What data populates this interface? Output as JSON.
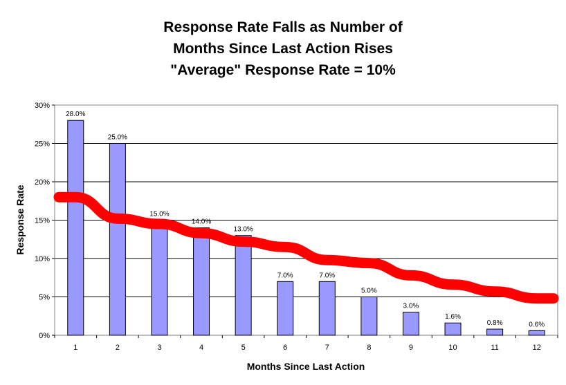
{
  "chart_data": {
    "type": "bar",
    "title_lines": [
      "Response Rate Falls as Number of",
      "Months Since Last Action Rises",
      "\"Average\" Response Rate = 10%"
    ],
    "xlabel": "Months Since Last Action",
    "ylabel": "Response Rate",
    "categories": [
      "1",
      "2",
      "3",
      "4",
      "5",
      "6",
      "7",
      "8",
      "9",
      "10",
      "11",
      "12"
    ],
    "values": [
      28.0,
      25.0,
      15.0,
      14.0,
      13.0,
      7.0,
      7.0,
      5.0,
      3.0,
      1.6,
      0.8,
      0.6
    ],
    "value_labels": [
      "28.0%",
      "25.0%",
      "15.0%",
      "14.0%",
      "13.0%",
      "7.0%",
      "7.0%",
      "5.0%",
      "3.0%",
      "1.6%",
      "0.8%",
      "0.6%"
    ],
    "ylim": [
      0,
      30
    ],
    "yticks": [
      0,
      5,
      10,
      15,
      20,
      25,
      30
    ],
    "ytick_labels": [
      "0%",
      "5%",
      "10%",
      "15%",
      "20%",
      "25%",
      "30%"
    ],
    "grid": true,
    "legend": "none",
    "bar_color": "#9999ff",
    "trend_line": {
      "color": "#ff0000",
      "values": [
        18.0,
        15.2,
        14.5,
        13.3,
        12.2,
        11.5,
        9.8,
        9.4,
        7.8,
        6.6,
        5.7,
        4.8
      ]
    }
  }
}
